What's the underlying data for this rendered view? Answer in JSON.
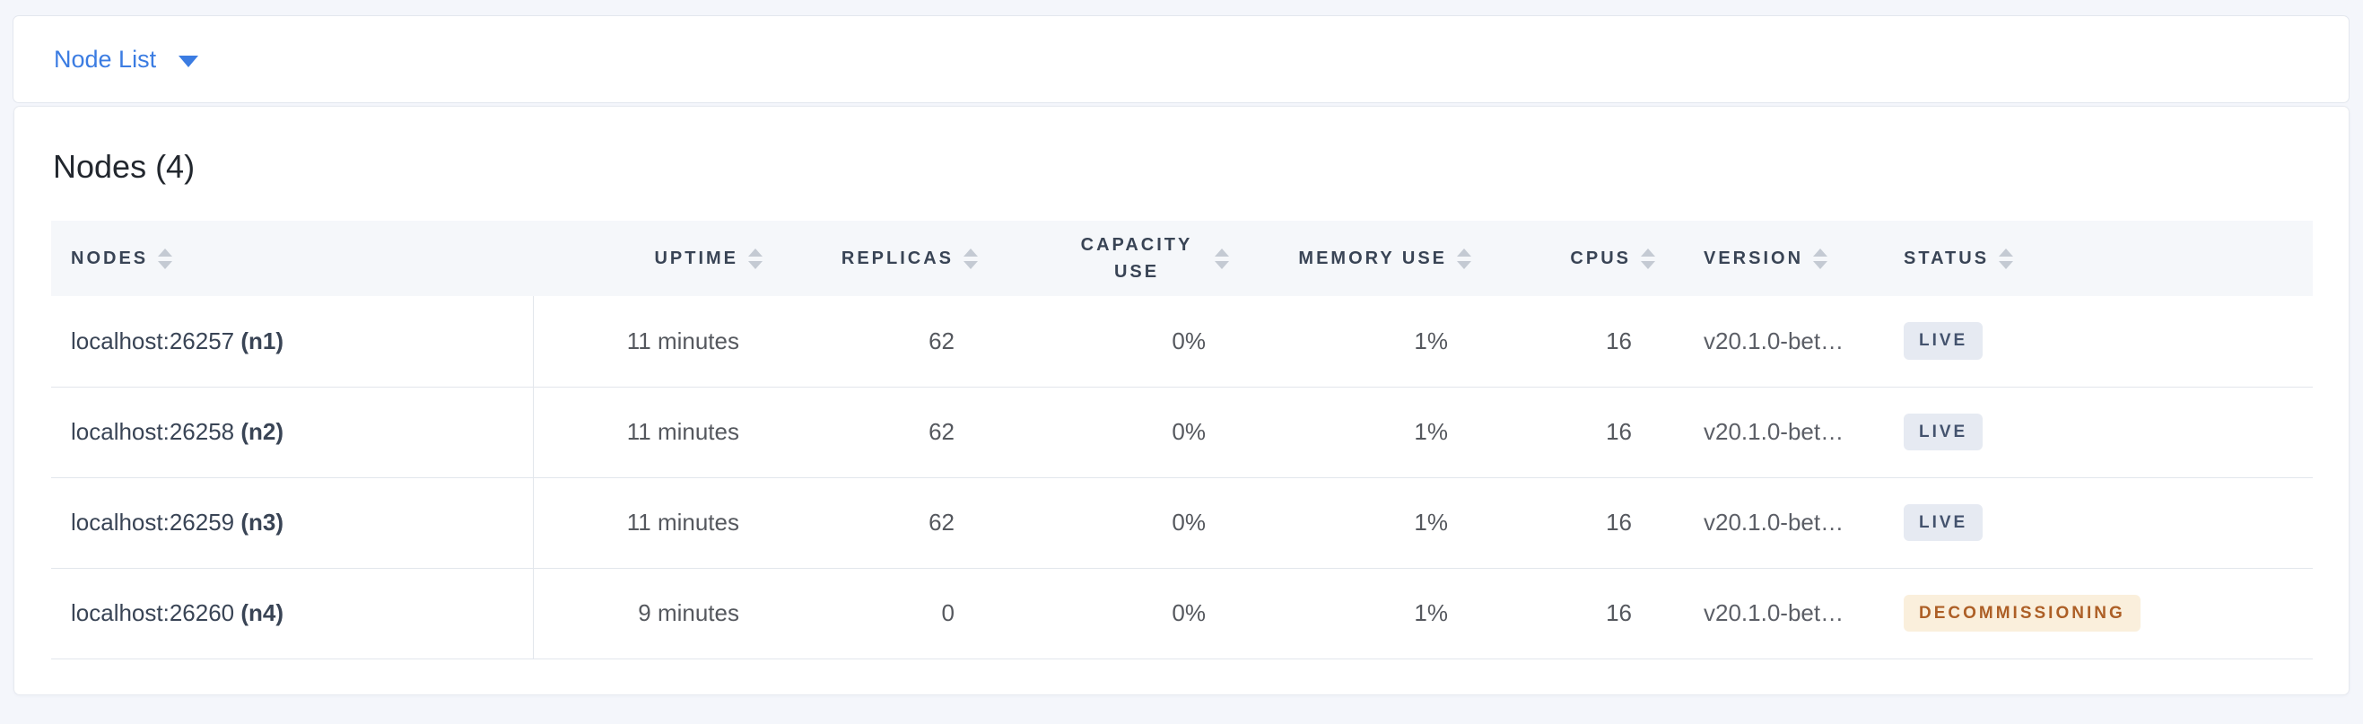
{
  "view_selector": {
    "label": "Node List",
    "caret_icon": "caret-down"
  },
  "panel": {
    "title": "Nodes (4)"
  },
  "table": {
    "columns": [
      {
        "key": "node",
        "label": "NODES",
        "align": "left",
        "sortable": true
      },
      {
        "key": "uptime",
        "label": "UPTIME",
        "align": "right",
        "sortable": true
      },
      {
        "key": "replicas",
        "label": "REPLICAS",
        "align": "right",
        "sortable": true
      },
      {
        "key": "capacity_use",
        "label": "CAPACITY USE",
        "align": "right",
        "sortable": true
      },
      {
        "key": "memory_use",
        "label": "MEMORY USE",
        "align": "right",
        "sortable": true
      },
      {
        "key": "cpus",
        "label": "CPUS",
        "align": "right",
        "sortable": true
      },
      {
        "key": "version",
        "label": "VERSION",
        "align": "left",
        "sortable": true
      },
      {
        "key": "status",
        "label": "STATUS",
        "align": "left",
        "sortable": true
      }
    ],
    "rows": [
      {
        "node_address": "localhost:26257",
        "node_id": "(n1)",
        "uptime": "11 minutes",
        "replicas": "62",
        "capacity_use": "0%",
        "memory_use": "1%",
        "cpus": "16",
        "version": "v20.1.0-bet…",
        "status": "LIVE"
      },
      {
        "node_address": "localhost:26258",
        "node_id": "(n2)",
        "uptime": "11 minutes",
        "replicas": "62",
        "capacity_use": "0%",
        "memory_use": "1%",
        "cpus": "16",
        "version": "v20.1.0-bet…",
        "status": "LIVE"
      },
      {
        "node_address": "localhost:26259",
        "node_id": "(n3)",
        "uptime": "11 minutes",
        "replicas": "62",
        "capacity_use": "0%",
        "memory_use": "1%",
        "cpus": "16",
        "version": "v20.1.0-bet…",
        "status": "LIVE"
      },
      {
        "node_address": "localhost:26260",
        "node_id": "(n4)",
        "uptime": "9 minutes",
        "replicas": "0",
        "capacity_use": "0%",
        "memory_use": "1%",
        "cpus": "16",
        "version": "v20.1.0-bet…",
        "status": "DECOMMISSIONING"
      }
    ]
  },
  "colors": {
    "accent_blue": "#3b7ce2",
    "header_text": "#394455",
    "page_background": "#f4f6fb",
    "header_row_background": "#f5f7fa",
    "row_border": "#e2e6ec",
    "live_badge_bg": "#e6eaf2",
    "live_badge_text": "#44536e",
    "decommissioning_badge_bg": "#faefdc",
    "decommissioning_badge_text": "#ad5f26",
    "sort_icon": "#c4cad3"
  }
}
